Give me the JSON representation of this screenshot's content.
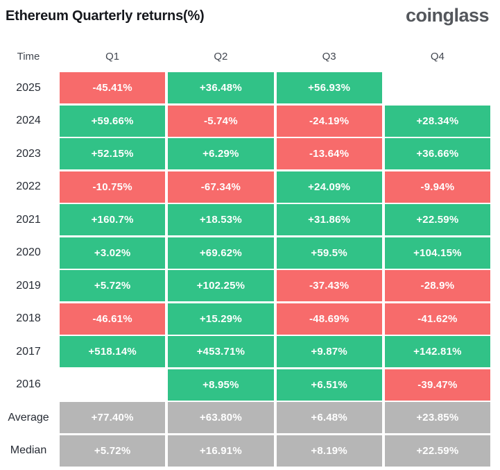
{
  "header": {
    "title": "Ethereum Quarterly returns(%)",
    "logo": "coinglass"
  },
  "colors": {
    "positive": "#31c287",
    "negative": "#f76b6b",
    "neutral": "#b6b6b6",
    "title_text": "#16181d",
    "logo_text": "#54575c"
  },
  "table": {
    "columns": [
      "Time",
      "Q1",
      "Q2",
      "Q3",
      "Q4"
    ],
    "rows": [
      {
        "label": "2025",
        "cells": [
          {
            "text": "-45.41%",
            "type": "negative"
          },
          {
            "text": "+36.48%",
            "type": "positive"
          },
          {
            "text": "+56.93%",
            "type": "positive"
          },
          {
            "text": "",
            "type": "empty"
          }
        ]
      },
      {
        "label": "2024",
        "cells": [
          {
            "text": "+59.66%",
            "type": "positive"
          },
          {
            "text": "-5.74%",
            "type": "negative"
          },
          {
            "text": "-24.19%",
            "type": "negative"
          },
          {
            "text": "+28.34%",
            "type": "positive"
          }
        ]
      },
      {
        "label": "2023",
        "cells": [
          {
            "text": "+52.15%",
            "type": "positive"
          },
          {
            "text": "+6.29%",
            "type": "positive"
          },
          {
            "text": "-13.64%",
            "type": "negative"
          },
          {
            "text": "+36.66%",
            "type": "positive"
          }
        ]
      },
      {
        "label": "2022",
        "cells": [
          {
            "text": "-10.75%",
            "type": "negative"
          },
          {
            "text": "-67.34%",
            "type": "negative"
          },
          {
            "text": "+24.09%",
            "type": "positive"
          },
          {
            "text": "-9.94%",
            "type": "negative"
          }
        ]
      },
      {
        "label": "2021",
        "cells": [
          {
            "text": "+160.7%",
            "type": "positive"
          },
          {
            "text": "+18.53%",
            "type": "positive"
          },
          {
            "text": "+31.86%",
            "type": "positive"
          },
          {
            "text": "+22.59%",
            "type": "positive"
          }
        ]
      },
      {
        "label": "2020",
        "cells": [
          {
            "text": "+3.02%",
            "type": "positive"
          },
          {
            "text": "+69.62%",
            "type": "positive"
          },
          {
            "text": "+59.5%",
            "type": "positive"
          },
          {
            "text": "+104.15%",
            "type": "positive"
          }
        ]
      },
      {
        "label": "2019",
        "cells": [
          {
            "text": "+5.72%",
            "type": "positive"
          },
          {
            "text": "+102.25%",
            "type": "positive"
          },
          {
            "text": "-37.43%",
            "type": "negative"
          },
          {
            "text": "-28.9%",
            "type": "negative"
          }
        ]
      },
      {
        "label": "2018",
        "cells": [
          {
            "text": "-46.61%",
            "type": "negative"
          },
          {
            "text": "+15.29%",
            "type": "positive"
          },
          {
            "text": "-48.69%",
            "type": "negative"
          },
          {
            "text": "-41.62%",
            "type": "negative"
          }
        ]
      },
      {
        "label": "2017",
        "cells": [
          {
            "text": "+518.14%",
            "type": "positive"
          },
          {
            "text": "+453.71%",
            "type": "positive"
          },
          {
            "text": "+9.87%",
            "type": "positive"
          },
          {
            "text": "+142.81%",
            "type": "positive"
          }
        ]
      },
      {
        "label": "2016",
        "cells": [
          {
            "text": "",
            "type": "empty"
          },
          {
            "text": "+8.95%",
            "type": "positive"
          },
          {
            "text": "+6.51%",
            "type": "positive"
          },
          {
            "text": "-39.47%",
            "type": "negative"
          }
        ]
      },
      {
        "label": "Average",
        "cells": [
          {
            "text": "+77.40%",
            "type": "neutral"
          },
          {
            "text": "+63.80%",
            "type": "neutral"
          },
          {
            "text": "+6.48%",
            "type": "neutral"
          },
          {
            "text": "+23.85%",
            "type": "neutral"
          }
        ]
      },
      {
        "label": "Median",
        "cells": [
          {
            "text": "+5.72%",
            "type": "neutral"
          },
          {
            "text": "+16.91%",
            "type": "neutral"
          },
          {
            "text": "+8.19%",
            "type": "neutral"
          },
          {
            "text": "+22.59%",
            "type": "neutral"
          }
        ]
      }
    ]
  },
  "chart_data": {
    "type": "table",
    "title": "Ethereum Quarterly returns(%)",
    "columns": [
      "Time",
      "Q1",
      "Q2",
      "Q3",
      "Q4"
    ],
    "unit": "percent",
    "color_coding": "green=positive, red=negative, gray=aggregate",
    "rows": [
      {
        "time": "2025",
        "q1": -45.41,
        "q2": 36.48,
        "q3": 56.93,
        "q4": null
      },
      {
        "time": "2024",
        "q1": 59.66,
        "q2": -5.74,
        "q3": -24.19,
        "q4": 28.34
      },
      {
        "time": "2023",
        "q1": 52.15,
        "q2": 6.29,
        "q3": -13.64,
        "q4": 36.66
      },
      {
        "time": "2022",
        "q1": -10.75,
        "q2": -67.34,
        "q3": 24.09,
        "q4": -9.94
      },
      {
        "time": "2021",
        "q1": 160.7,
        "q2": 18.53,
        "q3": 31.86,
        "q4": 22.59
      },
      {
        "time": "2020",
        "q1": 3.02,
        "q2": 69.62,
        "q3": 59.5,
        "q4": 104.15
      },
      {
        "time": "2019",
        "q1": 5.72,
        "q2": 102.25,
        "q3": -37.43,
        "q4": -28.9
      },
      {
        "time": "2018",
        "q1": -46.61,
        "q2": 15.29,
        "q3": -48.69,
        "q4": -41.62
      },
      {
        "time": "2017",
        "q1": 518.14,
        "q2": 453.71,
        "q3": 9.87,
        "q4": 142.81
      },
      {
        "time": "2016",
        "q1": null,
        "q2": 8.95,
        "q3": 6.51,
        "q4": -39.47
      },
      {
        "time": "Average",
        "q1": 77.4,
        "q2": 63.8,
        "q3": 6.48,
        "q4": 23.85
      },
      {
        "time": "Median",
        "q1": 5.72,
        "q2": 16.91,
        "q3": 8.19,
        "q4": 22.59
      }
    ]
  }
}
